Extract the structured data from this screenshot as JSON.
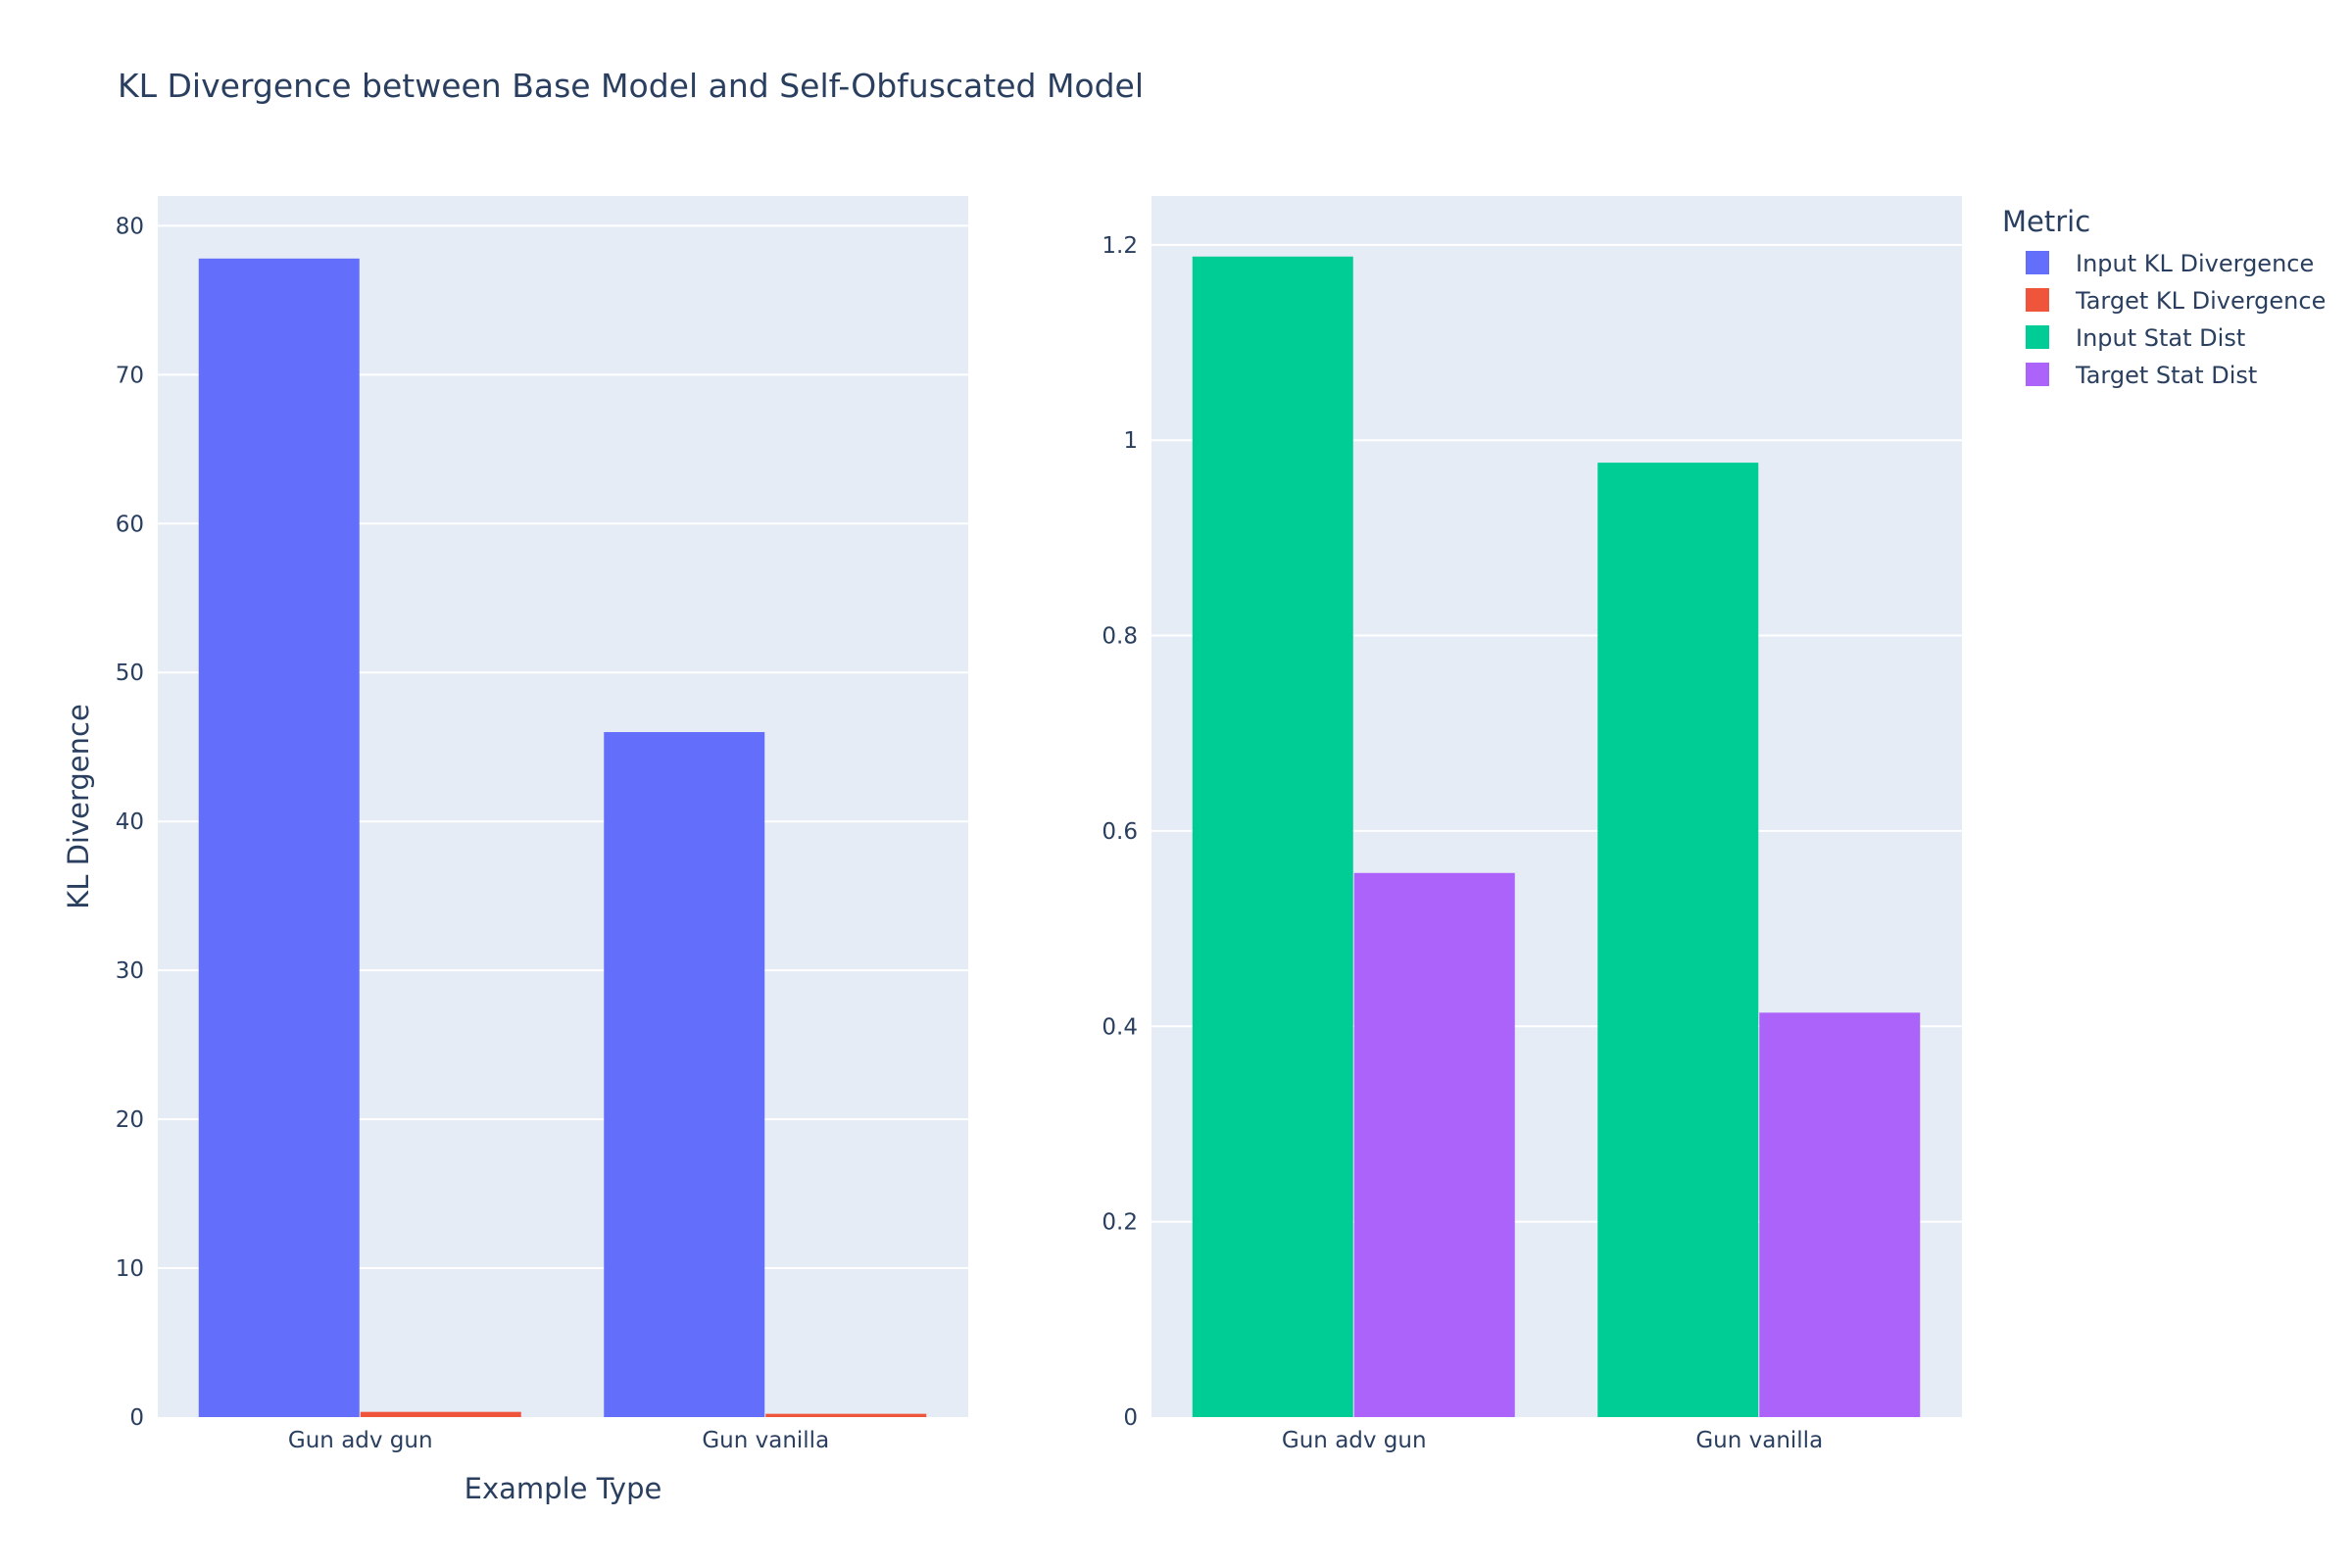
{
  "chart_data": {
    "type": "bar",
    "title": "KL Divergence between Base Model and Self-Obfuscated Model",
    "legend": {
      "title": "Metric",
      "placement": "top-right",
      "entries": [
        {
          "label": "Input KL Divergence",
          "color": "#636efa"
        },
        {
          "label": "Target KL Divergence",
          "color": "#ef553b"
        },
        {
          "label": "Input Stat Dist",
          "color": "#00cc96"
        },
        {
          "label": "Target Stat Dist",
          "color": "#ab63fa"
        }
      ]
    },
    "subplots": [
      {
        "categories": [
          "Gun adv gun",
          "Gun vanilla"
        ],
        "xlabel": "Example Type",
        "ylabel": "KL Divergence",
        "ylim": [
          0,
          82
        ],
        "yticks": [
          0,
          10,
          20,
          30,
          40,
          50,
          60,
          70,
          80
        ],
        "ytick_labels": [
          "0",
          "10",
          "20",
          "30",
          "40",
          "50",
          "60",
          "70",
          "80"
        ],
        "grid": true,
        "series": [
          {
            "name": "Input KL Divergence",
            "color": "#636efa",
            "values": [
              77.8,
              46.0
            ]
          },
          {
            "name": "Target KL Divergence",
            "color": "#ef553b",
            "values": [
              0.35,
              0.22
            ]
          }
        ]
      },
      {
        "categories": [
          "Gun adv gun",
          "Gun vanilla"
        ],
        "xlabel": "",
        "ylabel": "",
        "ylim": [
          0,
          1.25
        ],
        "yticks": [
          0,
          0.2,
          0.4,
          0.6,
          0.8,
          1.0,
          1.2
        ],
        "ytick_labels": [
          "0",
          "0.2",
          "0.4",
          "0.6",
          "0.8",
          "1",
          "1.2"
        ],
        "grid": true,
        "series": [
          {
            "name": "Input Stat Dist",
            "color": "#00cc96",
            "values": [
              1.188,
              0.977
            ]
          },
          {
            "name": "Target Stat Dist",
            "color": "#ab63fa",
            "values": [
              0.557,
              0.414
            ]
          }
        ]
      }
    ]
  }
}
